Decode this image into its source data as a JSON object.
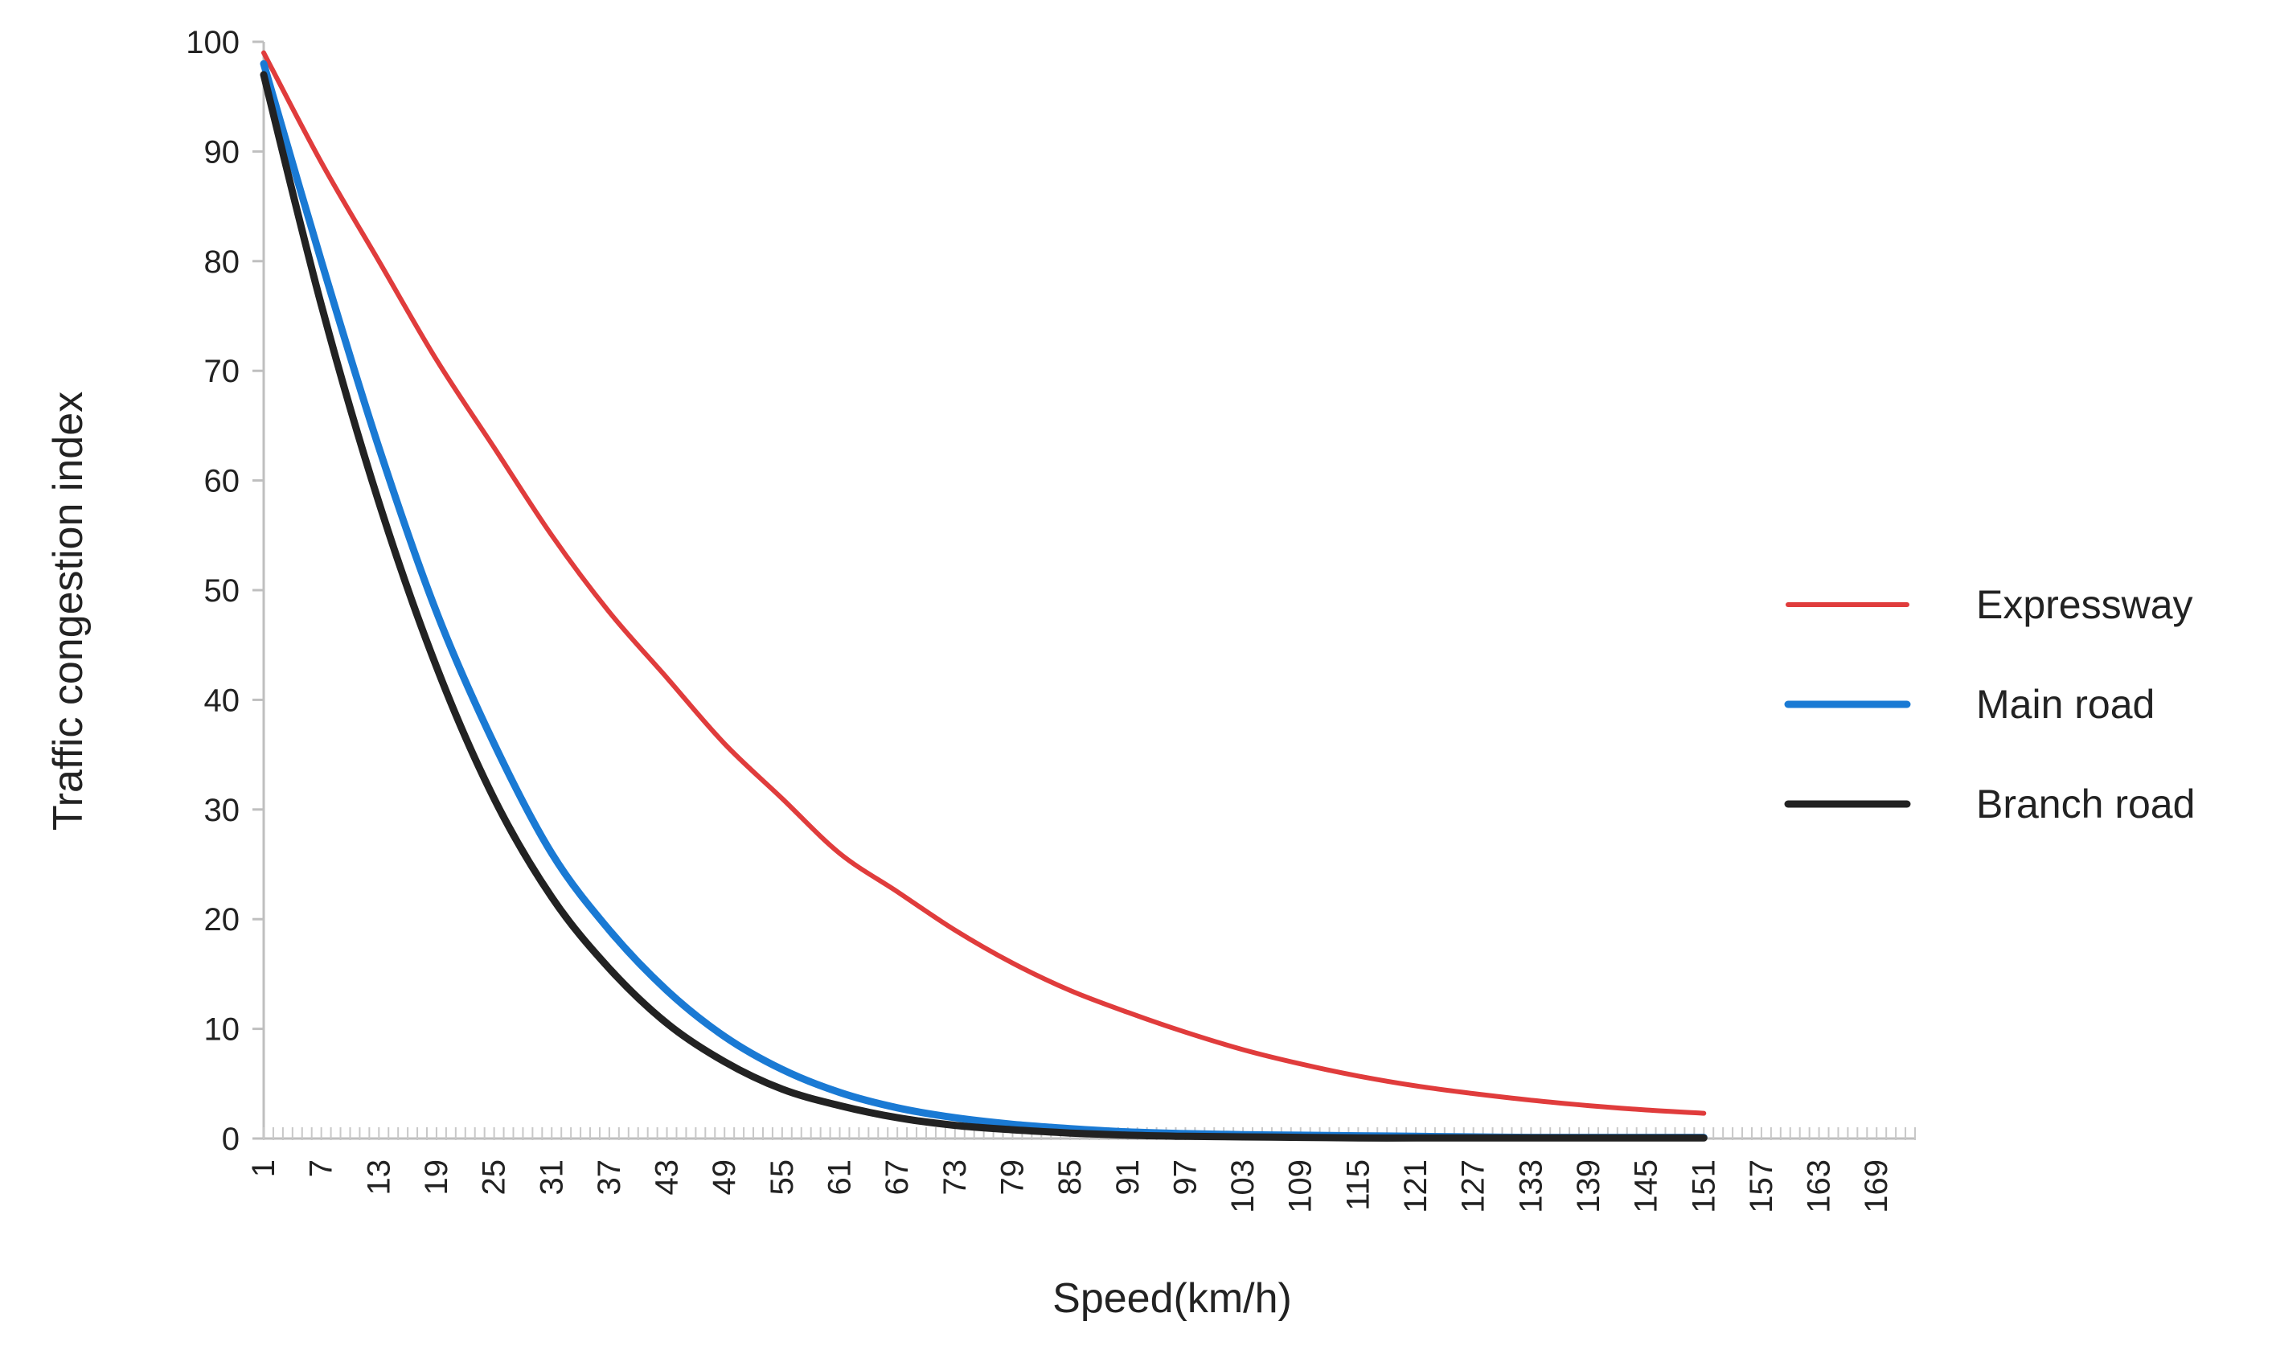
{
  "chart_data": {
    "type": "line",
    "xlabel": "Speed(km/h)",
    "ylabel": "Traffic congestion index",
    "x_tick_labels": [
      "1",
      "7",
      "13",
      "19",
      "25",
      "31",
      "37",
      "43",
      "49",
      "55",
      "61",
      "67",
      "73",
      "79",
      "85",
      "91",
      "97",
      "103",
      "109",
      "115",
      "121",
      "127",
      "133",
      "139",
      "145",
      "151",
      "157",
      "163",
      "169"
    ],
    "y_ticks": [
      0,
      10,
      20,
      30,
      40,
      50,
      60,
      70,
      80,
      90,
      100
    ],
    "xlim": [
      1,
      173
    ],
    "ylim": [
      0,
      100
    ],
    "grid": false,
    "legend_position": "right",
    "x": [
      1,
      7,
      13,
      19,
      25,
      31,
      37,
      43,
      49,
      55,
      61,
      67,
      73,
      79,
      85,
      91,
      97,
      103,
      109,
      115,
      121,
      127,
      133,
      139,
      145,
      151
    ],
    "series": [
      {
        "name": "Expressway",
        "color": "#e03c3c",
        "values": [
          99,
          89,
          80,
          71,
          63,
          55,
          48,
          42,
          36,
          31,
          26,
          22.5,
          19,
          16,
          13.5,
          11.5,
          9.7,
          8.1,
          6.8,
          5.7,
          4.8,
          4.1,
          3.5,
          3,
          2.6,
          2.3
        ]
      },
      {
        "name": "Main road",
        "color": "#1a7ad4",
        "values": [
          98,
          80,
          63,
          48,
          36,
          26,
          19,
          13.5,
          9.3,
          6.3,
          4.2,
          2.8,
          1.9,
          1.3,
          0.9,
          0.6,
          0.45,
          0.35,
          0.3,
          0.25,
          0.2,
          0.15,
          0.1,
          0.1,
          0.1,
          0.1
        ]
      },
      {
        "name": "Branch road",
        "color": "#222222",
        "values": [
          97,
          76,
          58,
          43,
          31,
          22,
          15.5,
          10.5,
          7,
          4.5,
          3,
          1.9,
          1.2,
          0.8,
          0.5,
          0.3,
          0.2,
          0.15,
          0.1,
          0.05,
          0.05,
          0.05,
          0.05,
          0.05,
          0.05,
          0.05
        ]
      }
    ]
  }
}
